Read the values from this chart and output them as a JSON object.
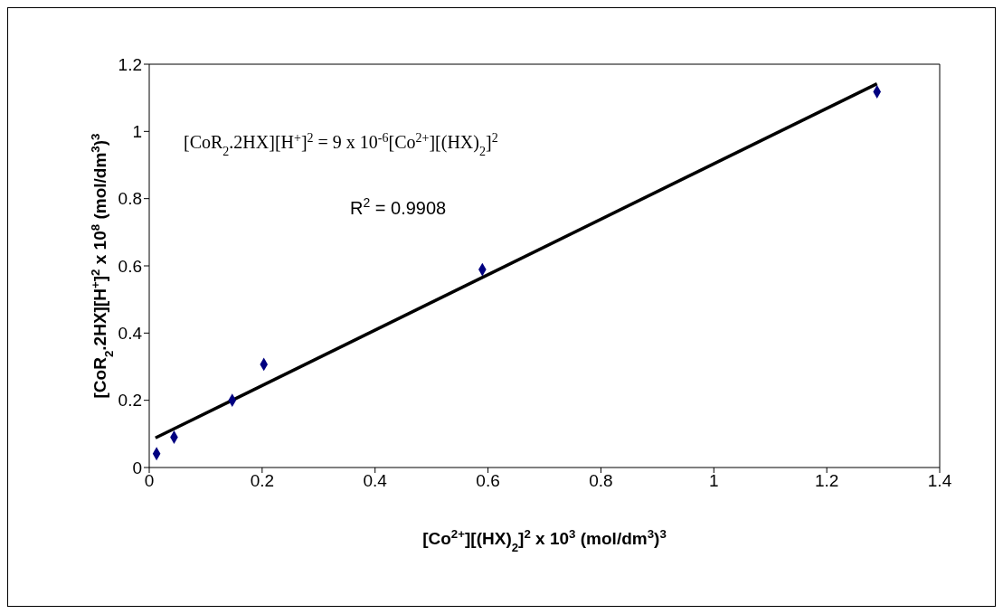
{
  "chart_data": {
    "type": "scatter",
    "xlabel": "[Co$^{2+}$][(HX)$_{2}$]$^{2}$ x 10$^{3}$ (mol/dm$^{3}$)$^{3}$",
    "ylabel": "[CoR$_{2}$.2HX][H$^{+}$]$^{2}$ x 10$^{8}$ (mol/dm$^{3}$)$^{3}$",
    "xlim": [
      0,
      1.4
    ],
    "xticks": [
      0,
      0.2,
      0.4,
      0.6,
      0.8,
      1,
      1.2,
      1.4
    ],
    "ylim": [
      0,
      1.2
    ],
    "yticks": [
      0,
      0.2,
      0.4,
      0.6,
      0.8,
      1,
      1.2
    ],
    "grid": false,
    "legend": false,
    "annotations": [
      "[CoR$_{2}$.2HX][H$^{+}$]$^{2}$ = 9 x 10$^{-6}$[Co$^{2+}$][(HX)$_{2}$]$^{2}$",
      "R$^{2}$ = 0.9908"
    ],
    "series": [
      {
        "color": "#000080",
        "marker": "diamond",
        "x": [
          0.013,
          0.044,
          0.147,
          0.203,
          0.59,
          1.289
        ],
        "values": [
          0.041,
          0.09,
          0.2,
          0.307,
          0.589,
          1.118
        ]
      },
      {
        "type": "line",
        "color": "#000000",
        "marker": "none",
        "line_style": "solid",
        "x": [
          0.011,
          1.289
        ],
        "values": [
          0.088,
          1.142
        ]
      }
    ]
  }
}
